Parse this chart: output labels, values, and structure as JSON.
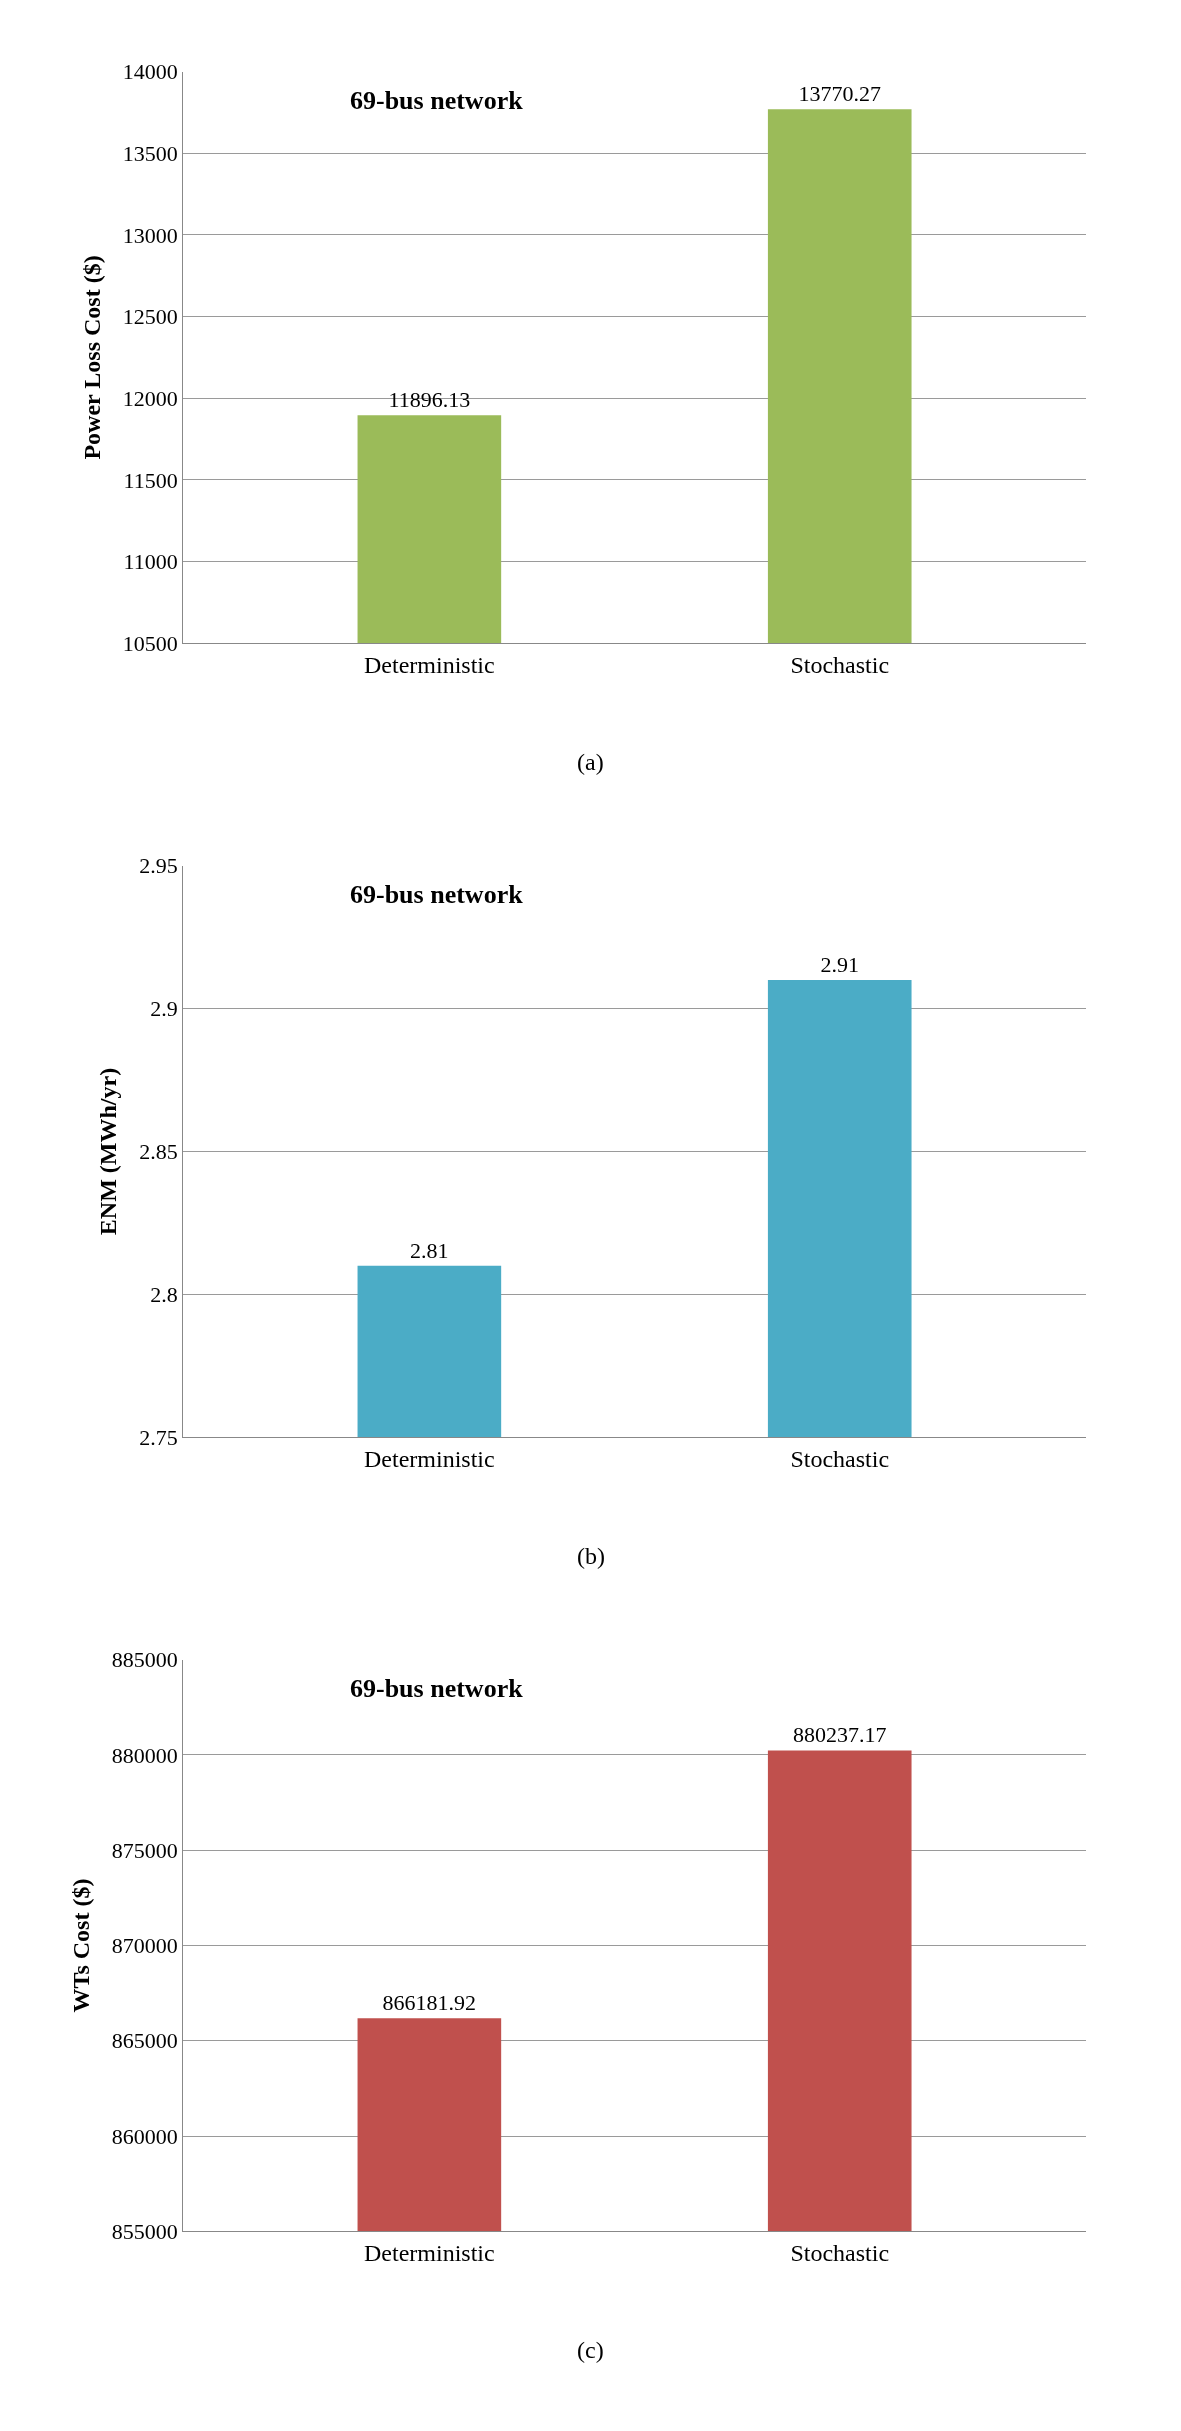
{
  "chart_data": [
    {
      "type": "bar",
      "title": "69-bus network",
      "ylabel": "Power Loss Cost ($)",
      "categories": [
        "Deterministic",
        "Stochastic"
      ],
      "values": [
        11896.13,
        13770.27
      ],
      "color": "#9bbb59",
      "ylim": [
        10500,
        14000
      ],
      "yticks": [
        10500,
        11000,
        11500,
        12000,
        12500,
        13000,
        13500,
        14000
      ],
      "grid": "y",
      "data_labels": true,
      "annotations": [
        "(a)"
      ]
    },
    {
      "type": "bar",
      "title": "69-bus network",
      "ylabel": "ENM (MWh/yr)",
      "categories": [
        "Deterministic",
        "Stochastic"
      ],
      "values": [
        2.81,
        2.91
      ],
      "color": "#4bacc6",
      "ylim": [
        2.75,
        2.95
      ],
      "yticks": [
        2.75,
        2.8,
        2.85,
        2.9,
        2.95
      ],
      "grid": "y",
      "data_labels": true,
      "annotations": [
        "(b)"
      ]
    },
    {
      "type": "bar",
      "title": "69-bus network",
      "ylabel": "WTs Cost ($)",
      "categories": [
        "Deterministic",
        "Stochastic"
      ],
      "values": [
        866181.92,
        880237.17
      ],
      "color": "#c0504d",
      "ylim": [
        855000,
        885000
      ],
      "yticks": [
        855000,
        860000,
        865000,
        870000,
        875000,
        880000,
        885000
      ],
      "grid": "y",
      "data_labels": true,
      "annotations": [
        "(c)"
      ]
    }
  ]
}
